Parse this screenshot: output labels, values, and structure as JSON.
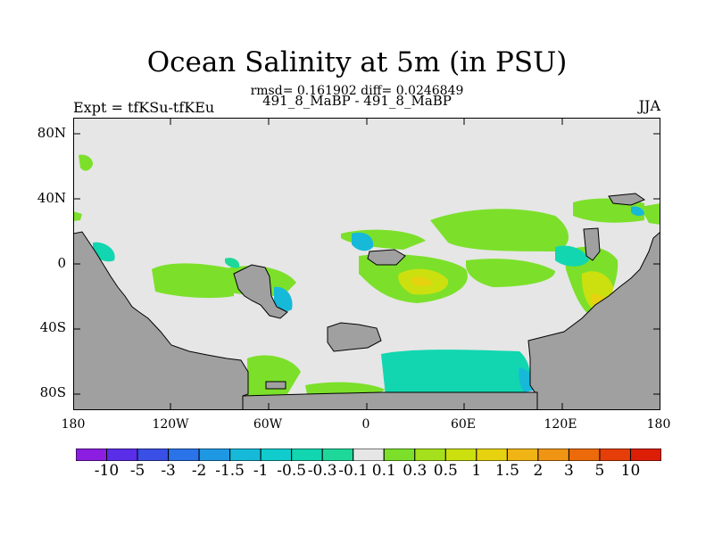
{
  "title": "Ocean Salinity at 5m (in PSU)",
  "stats": "rmsd= 0.161902 diff= 0.0246849",
  "experiment": "Expt = tfKSu-tfKEu",
  "models": "491_8_MaBP - 491_8_MaBP",
  "season": "JJA",
  "map": {
    "y_ticks": [
      "80N",
      "40N",
      "0",
      "40S",
      "80S"
    ],
    "x_ticks": [
      "180",
      "120W",
      "60W",
      "0",
      "60E",
      "120E",
      "180"
    ]
  },
  "legend": {
    "labels": [
      "-10",
      "-5",
      "-3",
      "-2",
      "-1.5",
      "-1",
      "-0.5",
      "-0.3",
      "-0.1",
      "0.1",
      "0.3",
      "0.5",
      "1",
      "1.5",
      "2",
      "3",
      "5",
      "10"
    ],
    "colors": [
      "#8b1ee0",
      "#5a2de8",
      "#3a4fe6",
      "#2a73e8",
      "#1f98e4",
      "#17b9d8",
      "#10cccc",
      "#12d6b0",
      "#1ed89a",
      "#e6e6e6",
      "#7ce02a",
      "#a6e01c",
      "#cce010",
      "#e6d20e",
      "#f0b414",
      "#f09414",
      "#ec6a0a",
      "#e63e08",
      "#dc1e06"
    ]
  },
  "land_color": "#a0a0a0",
  "ocean_background": "#e6e6e6"
}
